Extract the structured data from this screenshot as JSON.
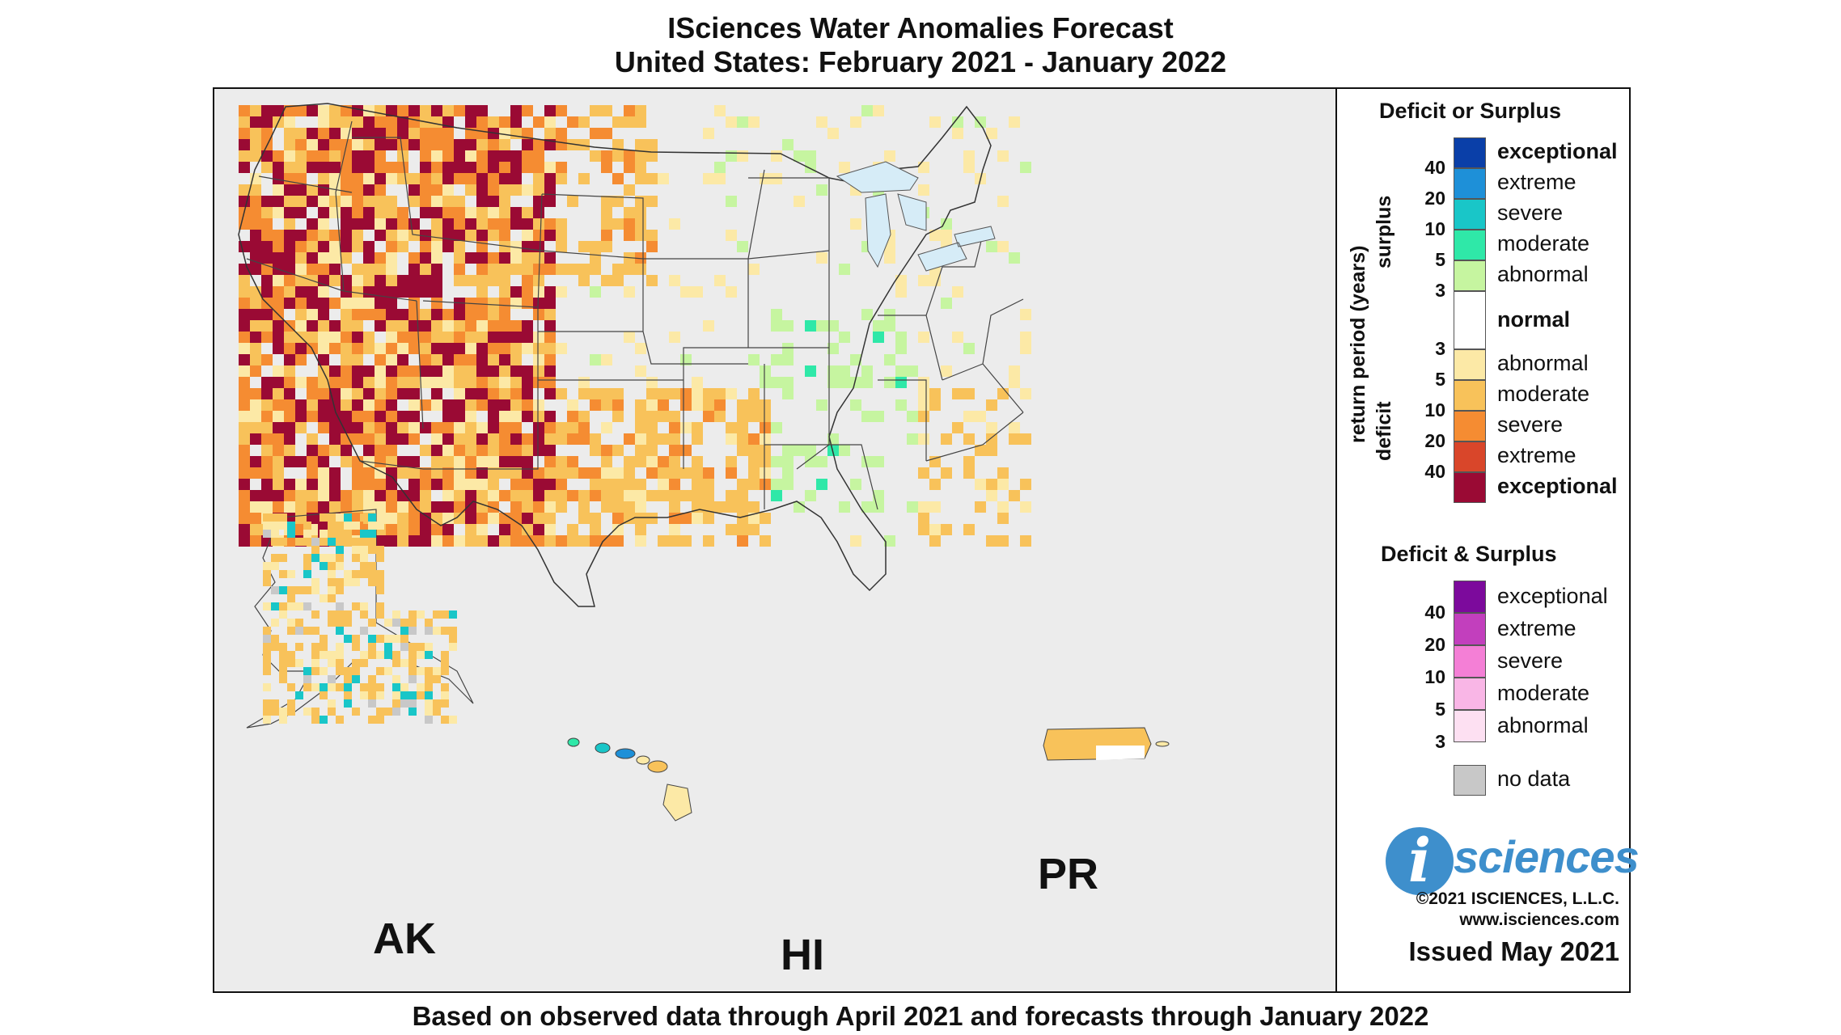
{
  "title_line1": "ISciences Water Anomalies Forecast",
  "title_line2": "United States: February 2021 - January 2022",
  "footer": "Based on observed data through April 2021 and forecasts through January 2022",
  "region_labels": {
    "ak": "AK",
    "hi": "HI",
    "pr": "PR"
  },
  "legend": {
    "deficit_or_surplus": {
      "heading": "Deficit or Surplus",
      "axis_label": "return period (years)",
      "surplus_label": "surplus",
      "deficit_label": "deficit",
      "surplus_classes": [
        {
          "label": "exceptional",
          "color": "#0a3fa8",
          "bold": true
        },
        {
          "label": "extreme",
          "color": "#1e90d8",
          "bold": false
        },
        {
          "label": "severe",
          "color": "#19c6c8",
          "bold": false
        },
        {
          "label": "moderate",
          "color": "#2fe8a8",
          "bold": false
        },
        {
          "label": "abnormal",
          "color": "#c6f5a0",
          "bold": false
        }
      ],
      "normal": {
        "label": "normal",
        "color": "#ffffff"
      },
      "deficit_classes": [
        {
          "label": "abnormal",
          "color": "#fce9a6",
          "bold": false
        },
        {
          "label": "moderate",
          "color": "#f8c25a",
          "bold": false
        },
        {
          "label": "severe",
          "color": "#f58c32",
          "bold": false
        },
        {
          "label": "extreme",
          "color": "#d9462a",
          "bold": false
        },
        {
          "label": "exceptional",
          "color": "#9a0a34",
          "bold": true
        }
      ],
      "surplus_ticks": [
        "40",
        "20",
        "10",
        "5",
        "3"
      ],
      "deficit_ticks": [
        "3",
        "5",
        "10",
        "20",
        "40"
      ]
    },
    "deficit_and_surplus": {
      "heading": "Deficit & Surplus",
      "classes": [
        {
          "label": "exceptional",
          "color": "#7c0a9c"
        },
        {
          "label": "extreme",
          "color": "#c23fbd"
        },
        {
          "label": "severe",
          "color": "#f47fd6"
        },
        {
          "label": "moderate",
          "color": "#f9b6e6"
        },
        {
          "label": "abnormal",
          "color": "#fde0f2"
        }
      ],
      "ticks": [
        "40",
        "20",
        "10",
        "5",
        "3"
      ]
    },
    "no_data": {
      "label": "no data",
      "color": "#c8c8c8"
    }
  },
  "logo": {
    "i": "i",
    "text": "sciences"
  },
  "copyright": "©2021 ISCIENCES, L.L.C.",
  "website": "www.isciences.com",
  "issued": "Issued May 2021",
  "colors": {
    "map_background": "#ececec",
    "land": "#ffffff",
    "great_lakes": "#d6ecf7",
    "border": "#333333"
  }
}
